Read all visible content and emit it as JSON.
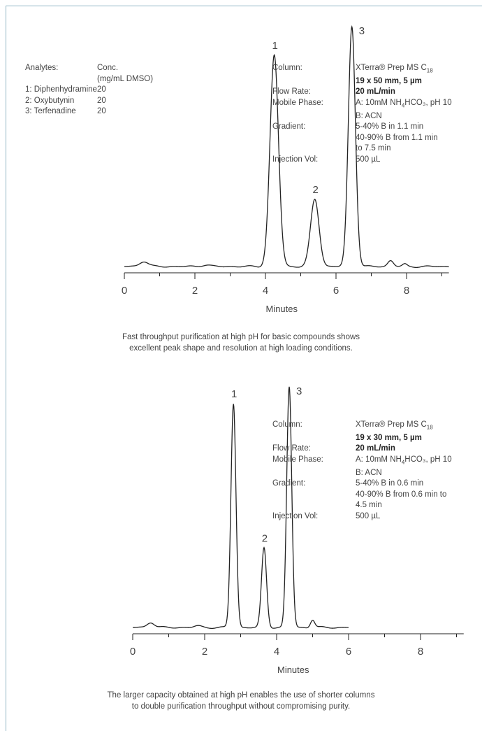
{
  "panels": [
    {
      "analytes_table": {
        "header": [
          "Analytes:",
          "Conc."
        ],
        "subheader": "(mg/mL DMSO)",
        "rows": [
          {
            "name": "1: Diphenhydramine",
            "conc": "20"
          },
          {
            "name": "2: Oxybutynin",
            "conc": "20"
          },
          {
            "name": "3: Terfenadine",
            "conc": "20"
          }
        ]
      },
      "conditions": [
        {
          "label": "Column:",
          "lines": [
            {
              "pre": "XTerra® Prep MS C",
              "sub": "18",
              "post": ""
            },
            {
              "pre": "19 x 50 mm, 5 µm",
              "bold": true
            }
          ]
        },
        {
          "label": "Flow Rate:",
          "lines": [
            {
              "pre": "20 mL/min",
              "bold": true
            }
          ]
        },
        {
          "label": "Mobile Phase:",
          "lines": [
            {
              "pre": "A: 10mM NH",
              "sub": "4",
              "post": "HCO₃, pH 10"
            },
            {
              "pre": "B: ACN"
            }
          ]
        },
        {
          "label": "Gradient:",
          "lines": [
            {
              "pre": "5-40% B in 1.1 min"
            },
            {
              "pre": "40-90% B from 1.1 min"
            },
            {
              "pre": "to 7.5 min"
            }
          ]
        },
        {
          "label": "Injection Vol:",
          "lines": [
            {
              "pre": "500 µL"
            }
          ]
        }
      ],
      "caption": [
        "Fast throughput purification at high pH for basic compounds shows",
        "excellent peak shape and resolution at high loading conditions."
      ]
    },
    {
      "analytes_table": null,
      "conditions": [
        {
          "label": "Column:",
          "lines": [
            {
              "pre": "XTerra® Prep MS C",
              "sub": "18",
              "post": ""
            },
            {
              "pre": "19 x 30 mm, 5 µm",
              "bold": true
            }
          ]
        },
        {
          "label": "Flow Rate:",
          "lines": [
            {
              "pre": "20 mL/min",
              "bold": true
            }
          ]
        },
        {
          "label": "Mobile Phase:",
          "lines": [
            {
              "pre": "A: 10mM NH",
              "sub": "4",
              "post": "HCO₃, pH 10"
            },
            {
              "pre": "B: ACN"
            }
          ]
        },
        {
          "label": "Gradient:",
          "lines": [
            {
              "pre": "5-40% B in 0.6 min"
            },
            {
              "pre": "40-90% B from 0.6 min to"
            },
            {
              "pre": "4.5 min"
            }
          ]
        },
        {
          "label": "Injection Vol:",
          "lines": [
            {
              "pre": "500 µL"
            }
          ]
        }
      ],
      "caption": [
        "The larger capacity obtained at high pH enables the use of shorter columns",
        "to double purification throughput without compromising purity."
      ]
    }
  ],
  "chart_data": [
    {
      "type": "line",
      "title": "",
      "xlabel": "Minutes",
      "ylabel": "",
      "xlim": [
        0,
        9.2
      ],
      "ylim": [
        0,
        100
      ],
      "xticks": [
        0,
        2,
        4,
        6,
        8
      ],
      "grid": false,
      "peaks": [
        {
          "label": "1",
          "x": 4.25,
          "height": 88,
          "width": 0.12
        },
        {
          "label": "2",
          "x": 5.4,
          "height": 28,
          "width": 0.12
        },
        {
          "label": "3",
          "x": 6.45,
          "height": 100,
          "width": 0.1
        },
        {
          "x": 0.55,
          "height": 2.2,
          "width": 0.12
        },
        {
          "x": 2.3,
          "height": 0.7,
          "width": 0.12
        },
        {
          "x": 7.55,
          "height": 2.5,
          "width": 0.08
        },
        {
          "x": 7.95,
          "height": 0.9,
          "width": 0.06
        }
      ]
    },
    {
      "type": "line",
      "title": "",
      "xlabel": "Minutes",
      "ylabel": "",
      "xlim": [
        0,
        9.2
      ],
      "ylim": [
        0,
        100
      ],
      "xticks": [
        0,
        2,
        4,
        6,
        8
      ],
      "grid": false,
      "peaks": [
        {
          "label": "1",
          "x": 2.8,
          "height": 93,
          "width": 0.07
        },
        {
          "label": "2",
          "x": 3.65,
          "height": 33,
          "width": 0.07
        },
        {
          "label": "3",
          "x": 4.35,
          "height": 100,
          "width": 0.07
        },
        {
          "x": 0.5,
          "height": 2.2,
          "width": 0.1
        },
        {
          "x": 1.8,
          "height": 0.6,
          "width": 0.1
        },
        {
          "x": 5.0,
          "height": 3.2,
          "width": 0.06
        }
      ]
    }
  ]
}
